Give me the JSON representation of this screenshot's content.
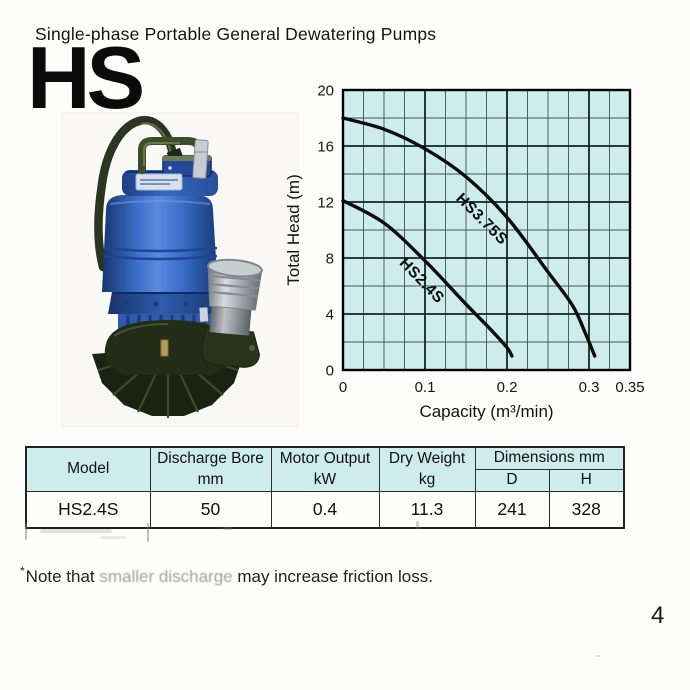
{
  "page": {
    "title": "Single-phase Portable General Dewatering Pumps",
    "series_code": "HS",
    "page_number": "4"
  },
  "footnote": {
    "marker": "*",
    "text_start": "Note that ",
    "text_faded": "smaller discharge",
    "text_end": " may increase friction loss."
  },
  "colors": {
    "chart_plot_bg": "#cdeceb",
    "chart_grid_minor": "#3d5654",
    "chart_grid_major": "#0f2624",
    "chart_border": "#000000",
    "curve": "#0c0c0c",
    "table_header_bg": "#cdeceb",
    "pump_body_blue": "#3a6fc8",
    "pump_base_green": "#222c17",
    "pump_port_gray": "#aeb5ba"
  },
  "chart_data": {
    "type": "line",
    "title": "",
    "xlabel": "Capacity (m³/min)",
    "ylabel": "Total Head (m)",
    "xlim": [
      0,
      0.35
    ],
    "ylim": [
      0,
      20
    ],
    "x_ticks": [
      0,
      0.1,
      0.2,
      0.3,
      0.35
    ],
    "x_tick_labels": [
      "0",
      "0.1",
      "0.2",
      "0.3",
      "0.35"
    ],
    "y_ticks": [
      0,
      4,
      8,
      12,
      16,
      20
    ],
    "y_tick_labels": [
      "0",
      "4",
      "8",
      "12",
      "16",
      "20"
    ],
    "x_minor_step": 0.025,
    "y_minor_step": 2,
    "grid": true,
    "legend_position": "labels-on-curves",
    "series": [
      {
        "name": "HS3.75S",
        "points": [
          [
            0,
            18
          ],
          [
            0.05,
            17.2
          ],
          [
            0.1,
            15.8
          ],
          [
            0.15,
            13.8
          ],
          [
            0.2,
            10.9
          ],
          [
            0.25,
            7.0
          ],
          [
            0.28,
            4.6
          ],
          [
            0.295,
            2.7
          ],
          [
            0.307,
            1.0
          ]
        ],
        "label_at": [
          0.137,
          12.2
        ],
        "label_angle": 45
      },
      {
        "name": "HS2.4S",
        "points": [
          [
            0,
            12.1
          ],
          [
            0.05,
            10.5
          ],
          [
            0.1,
            7.8
          ],
          [
            0.15,
            4.7
          ],
          [
            0.18,
            2.9
          ],
          [
            0.2,
            1.6
          ],
          [
            0.206,
            1.0
          ]
        ],
        "label_at": [
          0.068,
          7.6
        ],
        "label_angle": 46
      }
    ]
  },
  "table": {
    "headers": {
      "model": "Model",
      "discharge_bore": "Discharge Bore",
      "discharge_bore_unit": "mm",
      "motor_output": "Motor Output",
      "motor_output_unit": "kW",
      "dry_weight": "Dry Weight",
      "dry_weight_unit": "kg",
      "dimensions": "Dimensions mm",
      "dim_d": "D",
      "dim_h": "H"
    },
    "rows": [
      {
        "model": "HS2.4S",
        "discharge_bore": "50",
        "motor_output": "0.4",
        "dry_weight": "11.3",
        "d": "241",
        "h": "328"
      }
    ]
  }
}
